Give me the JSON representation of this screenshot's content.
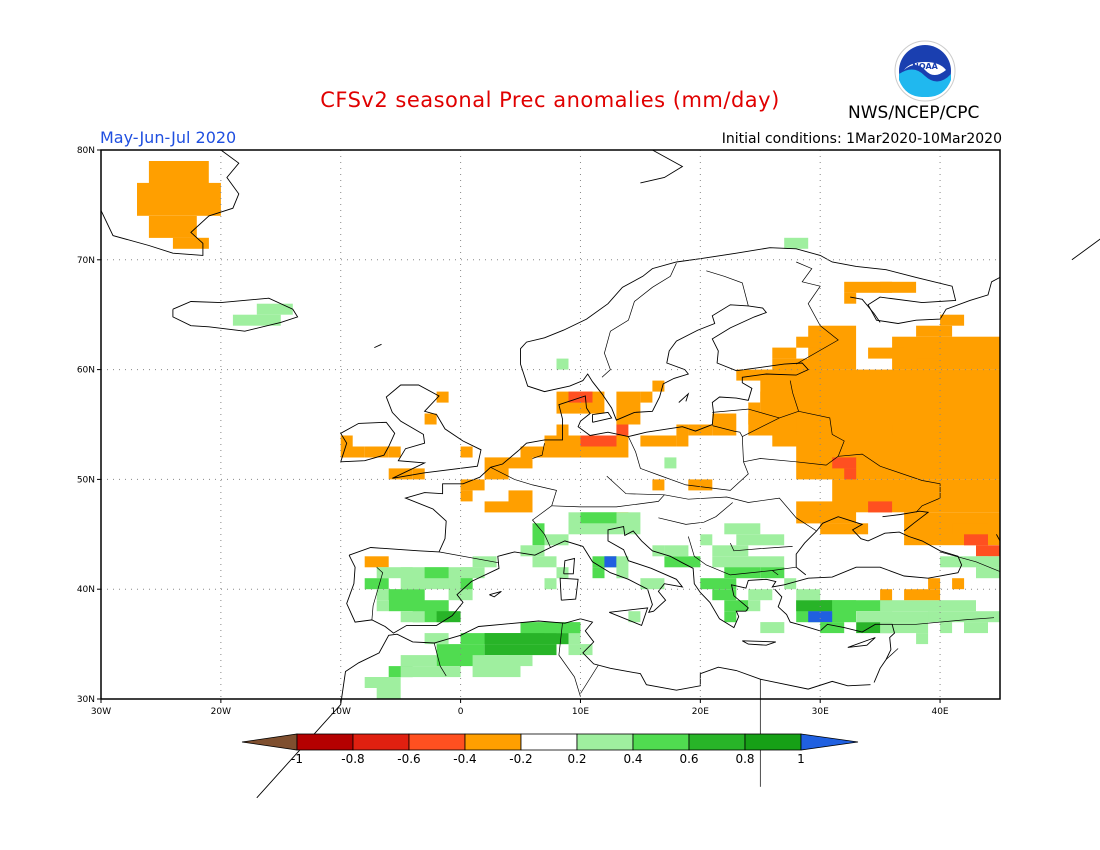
{
  "header": {
    "title": "CFSv2 seasonal Prec anomalies (mm/day)",
    "agency": "NWS/NCEP/CPC",
    "season": "May-Jun-Jul 2020",
    "initial_conditions": "Initial conditions: 1Mar2020-10Mar2020",
    "logo_text": "NOAA"
  },
  "map": {
    "lon_range": [
      -30,
      45
    ],
    "lat_range": [
      30,
      80
    ],
    "lon_ticks": [
      "30W",
      "20W",
      "10W",
      "0",
      "10E",
      "20E",
      "30E",
      "40E"
    ],
    "lat_ticks": [
      "80N",
      "70N",
      "60N",
      "50N",
      "40N",
      "30N"
    ],
    "grid": true
  },
  "colorbar": {
    "labels": [
      "-1",
      "-0.8",
      "-0.6",
      "-0.4",
      "-0.2",
      "0.2",
      "0.4",
      "0.6",
      "0.8",
      "1"
    ],
    "colors": [
      "#7f4f2f",
      "#b40000",
      "#e02010",
      "#ff5020",
      "#ff9f00",
      "#ffffff",
      "#9fef9f",
      "#50dc50",
      "#28b428",
      "#16a016",
      "#2060e0"
    ]
  },
  "anomaly_colors": {
    "o": "#ff9f00",
    "r": "#ff5020",
    "g": "#9fef9f",
    "G": "#50dc50",
    "D": "#28b428",
    "b": "#2060e0"
  }
}
